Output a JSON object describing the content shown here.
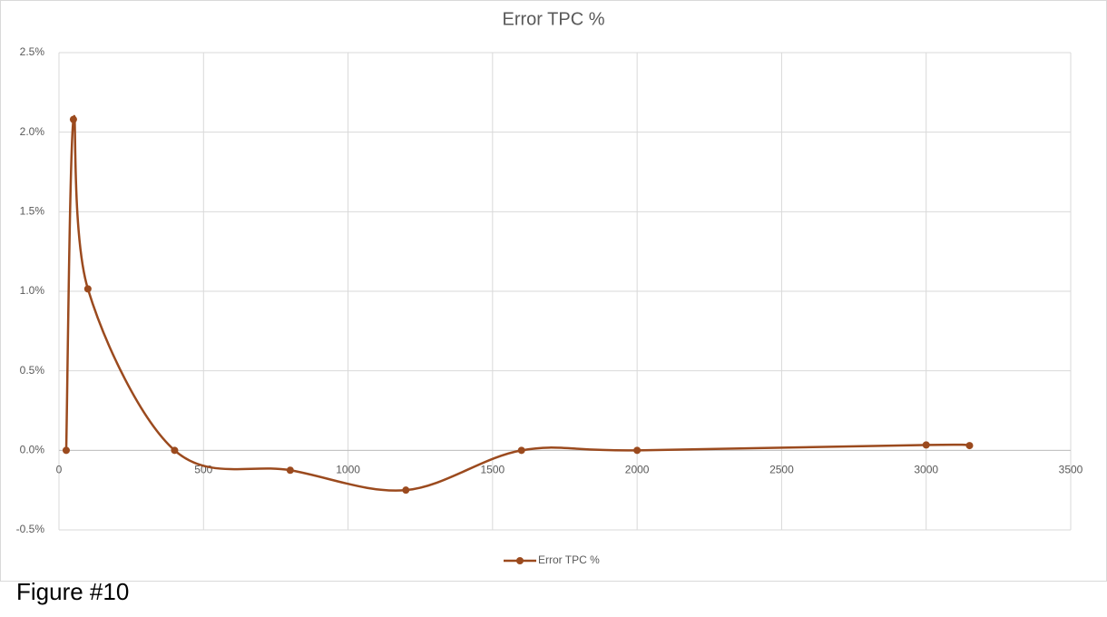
{
  "chart_data": {
    "type": "line",
    "title": "Error TPC %",
    "x": [
      25,
      50,
      100,
      400,
      800,
      1200,
      1600,
      2000,
      3000,
      3150
    ],
    "series": [
      {
        "name": "Error TPC %",
        "color": "#9b4a1e",
        "values": [
          0,
          2.08,
          1.015,
          0,
          -0.125,
          -0.25,
          0,
          0,
          0.034,
          0.03
        ]
      }
    ],
    "smooth": true,
    "xlim": [
      0,
      3500
    ],
    "xticks": [
      0,
      500,
      1000,
      1500,
      2000,
      2500,
      3000,
      3500
    ],
    "ylim": [
      -0.5,
      2.5
    ],
    "yticks": [
      {
        "value": -0.5,
        "label": "-0.5%"
      },
      {
        "value": 0,
        "label": "0.0%"
      },
      {
        "value": 0.5,
        "label": "0.5%"
      },
      {
        "value": 1,
        "label": "1.0%"
      },
      {
        "value": 1.5,
        "label": "1.5%"
      },
      {
        "value": 2,
        "label": "2.0%"
      },
      {
        "value": 2.5,
        "label": "2.5%"
      }
    ],
    "grid": true,
    "legend": "bottom"
  },
  "caption": "Figure #10"
}
